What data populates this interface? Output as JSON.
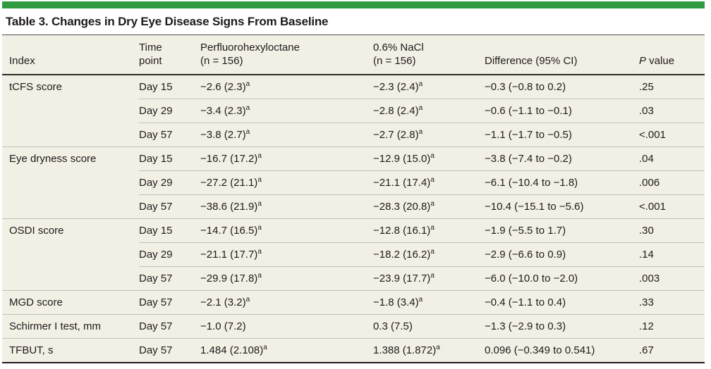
{
  "colors": {
    "accent_bar_green": "#2E9B40",
    "table_background_cream": "#F2EFE4",
    "text_dark": "#1F1B1C",
    "rule_dark": "#2E2A28",
    "rule_light": "#C3C0B4"
  },
  "title": "Table 3. Changes in Dry Eye Disease Signs From Baseline",
  "header": {
    "index": "Index",
    "time_line1": "Time",
    "time_line2": "point",
    "pfho_line1": "Perfluorohexyloctane",
    "pfho_line2": "(n = 156)",
    "nacl_line1": "0.6% NaCl",
    "nacl_line2": "(n = 156)",
    "difference": "Difference (95% CI)",
    "p_italic": "P",
    "p_rest": " value"
  },
  "rows": [
    {
      "index": "tCFS score",
      "time": "Day 15",
      "pfho": "−2.6 (2.3)",
      "pfho_sup": "a",
      "nacl": "−2.3 (2.4)",
      "nacl_sup": "a",
      "diff": "−0.3 (−0.8 to 0.2)",
      "p": ".25"
    },
    {
      "index": "",
      "time": "Day 29",
      "pfho": "−3.4 (2.3)",
      "pfho_sup": "a",
      "nacl": "−2.8 (2.4)",
      "nacl_sup": "a",
      "diff": "−0.6 (−1.1 to −0.1)",
      "p": ".03"
    },
    {
      "index": "",
      "time": "Day 57",
      "pfho": "−3.8 (2.7)",
      "pfho_sup": "a",
      "nacl": "−2.7 (2.8)",
      "nacl_sup": "a",
      "diff": "−1.1 (−1.7 to −0.5)",
      "p": "<.001"
    },
    {
      "index": "Eye dryness score",
      "time": "Day 15",
      "pfho": "−16.7 (17.2)",
      "pfho_sup": "a",
      "nacl": "−12.9 (15.0)",
      "nacl_sup": "a",
      "diff": "−3.8 (−7.4 to −0.2)",
      "p": ".04"
    },
    {
      "index": "",
      "time": "Day 29",
      "pfho": "−27.2 (21.1)",
      "pfho_sup": "a",
      "nacl": "−21.1 (17.4)",
      "nacl_sup": "a",
      "diff": "−6.1 (−10.4 to −1.8)",
      "p": ".006"
    },
    {
      "index": "",
      "time": "Day 57",
      "pfho": "−38.6 (21.9)",
      "pfho_sup": "a",
      "nacl": "−28.3 (20.8)",
      "nacl_sup": "a",
      "diff": "−10.4 (−15.1 to −5.6)",
      "p": "<.001"
    },
    {
      "index": "OSDI score",
      "time": "Day 15",
      "pfho": "−14.7 (16.5)",
      "pfho_sup": "a",
      "nacl": "−12.8 (16.1)",
      "nacl_sup": "a",
      "diff": "−1.9 (−5.5 to 1.7)",
      "p": ".30"
    },
    {
      "index": "",
      "time": "Day 29",
      "pfho": "−21.1 (17.7)",
      "pfho_sup": "a",
      "nacl": "−18.2 (16.2)",
      "nacl_sup": "a",
      "diff": "−2.9 (−6.6 to 0.9)",
      "p": ".14"
    },
    {
      "index": "",
      "time": "Day 57",
      "pfho": "−29.9 (17.8)",
      "pfho_sup": "a",
      "nacl": "−23.9 (17.7)",
      "nacl_sup": "a",
      "diff": "−6.0 (−10.0 to −2.0)",
      "p": ".003"
    },
    {
      "index": "MGD score",
      "time": "Day 57",
      "pfho": "−2.1 (3.2)",
      "pfho_sup": "a",
      "nacl": "−1.8 (3.4)",
      "nacl_sup": "a",
      "diff": "−0.4 (−1.1 to 0.4)",
      "p": ".33"
    },
    {
      "index": "Schirmer I test, mm",
      "time": "Day 57",
      "pfho": "−1.0 (7.2)",
      "pfho_sup": "",
      "nacl": "0.3 (7.5)",
      "nacl_sup": "",
      "diff": "−1.3 (−2.9 to 0.3)",
      "p": ".12"
    },
    {
      "index": "TFBUT, s",
      "time": "Day 57",
      "pfho": "1.484 (2.108)",
      "pfho_sup": "a",
      "nacl": "1.388 (1.872)",
      "nacl_sup": "a",
      "diff": "0.096 (−0.349 to 0.541)",
      "p": ".67"
    }
  ]
}
